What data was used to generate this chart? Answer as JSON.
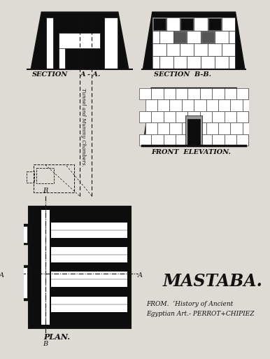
{
  "bg_color": "#dedad4",
  "line_color": "#111111",
  "dark_fill": "#0d0d0d",
  "brick_line": "#444444",
  "white": "#ffffff",
  "title": "MASTABA.",
  "subtitle1": "FROM.  ‘History of Ancient",
  "subtitle2": "Egyptian Art.- PERROT+CHIPIEZ"
}
